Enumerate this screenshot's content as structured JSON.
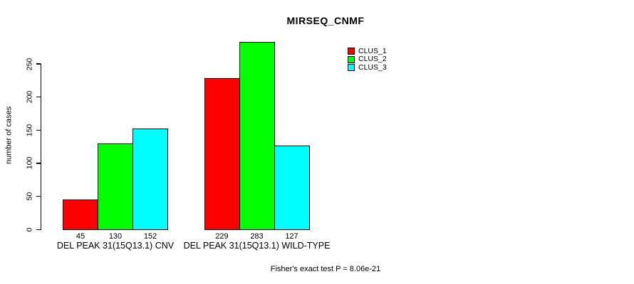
{
  "chart_data": {
    "type": "bar",
    "title": "MIRSEQ_CNMF",
    "ylabel": "number of cases",
    "xlabel": "",
    "categories": [
      "DEL PEAK 31(15Q13.1) CNV",
      "DEL PEAK 31(15Q13.1) WILD-TYPE"
    ],
    "series": [
      {
        "name": "CLUS_1",
        "color": "#ff0000",
        "values": [
          45,
          229
        ]
      },
      {
        "name": "CLUS_2",
        "color": "#00ff00",
        "values": [
          130,
          283
        ]
      },
      {
        "name": "CLUS_3",
        "color": "#00ffff",
        "values": [
          152,
          127
        ]
      }
    ],
    "yticks": [
      0,
      50,
      100,
      150,
      200,
      250
    ],
    "ylim": [
      0,
      250
    ],
    "grid": false,
    "legend_position": "top-right",
    "bar_value_labels": [
      [
        45,
        130,
        152
      ],
      [
        229,
        283,
        127
      ]
    ],
    "annotation": "Fisher's exact test P = 8.06e-21"
  }
}
